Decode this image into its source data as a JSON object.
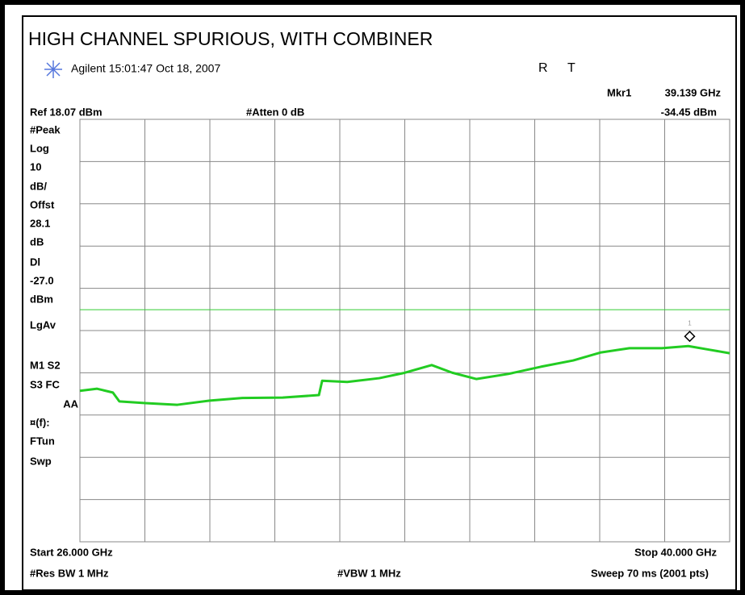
{
  "chart_data": {
    "type": "line",
    "title": "HIGH CHANNEL SPURIOUS, WITH COMBINER",
    "instrument": "Agilent 15:01:47  Oct 18, 2007",
    "status": [
      "R",
      "T"
    ],
    "ref_label": "Ref 18.07 dBm",
    "atten_label": "#Atten 0 dB",
    "start_label": "Start 26.000 GHz",
    "stop_label": "Stop 40.000 GHz",
    "rbw_label": "#Res BW 1 MHz",
    "vbw_label": "#VBW 1 MHz",
    "sweep_label": "Sweep 70 ms (2001 pts)",
    "annotations": [
      "#Peak",
      "Log",
      "10",
      "dB/",
      "Offst",
      "28.1",
      "dB",
      "Dl",
      "-27.0",
      "dBm",
      "LgAv",
      "M1  S2",
      "S3  FC",
      "AA",
      "¤(f):",
      "FTun",
      "Swp"
    ],
    "marker": {
      "name": "Mkr1",
      "label": "1",
      "x": 39.139,
      "y": -34.45,
      "x_label": "39.139 GHz",
      "y_label": "-34.45 dBm"
    },
    "display_line": -27.0,
    "display_line_color": "#33cc33",
    "xlim": [
      26,
      40
    ],
    "ylim": [
      -81.93,
      18.07
    ],
    "xticks": [
      26,
      27.4,
      28.8,
      30.2,
      31.6,
      33,
      34.4,
      35.8,
      37.2,
      38.6,
      40
    ],
    "yticks": [
      18.07,
      8.07,
      -1.93,
      -11.93,
      -21.93,
      -31.93,
      -41.93,
      -51.93,
      -61.93,
      -71.93,
      -81.93
    ],
    "grid": true,
    "series": [
      {
        "name": "Trace 1",
        "color": "#22cc22",
        "x": [
          26.0,
          26.37,
          26.71,
          26.85,
          27.41,
          28.1,
          28.8,
          29.5,
          30.37,
          31.15,
          31.22,
          31.76,
          32.45,
          32.97,
          33.58,
          34.02,
          34.54,
          35.23,
          35.93,
          36.63,
          37.23,
          37.84,
          38.54,
          39.11,
          39.58,
          40.0
        ],
        "values": [
          -46.2,
          -45.7,
          -46.6,
          -48.7,
          -49.1,
          -49.5,
          -48.5,
          -47.9,
          -47.8,
          -47.2,
          -43.8,
          -44.1,
          -43.2,
          -42.0,
          -40.1,
          -41.9,
          -43.4,
          -42.2,
          -40.5,
          -39.0,
          -37.1,
          -36.1,
          -36.1,
          -35.6,
          -36.5,
          -37.3
        ]
      }
    ]
  }
}
